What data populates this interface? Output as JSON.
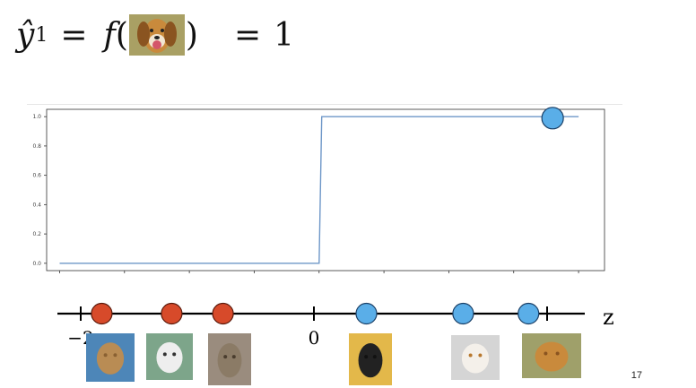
{
  "equation": {
    "lhs": "ŷ",
    "sub": "1",
    "eq1": "=",
    "func": "f",
    "open": "(",
    "close": ")",
    "eq2": "=",
    "result": "1",
    "image_icon": "dog-photo-icon"
  },
  "chart_data": {
    "type": "line",
    "x": [
      -2.0,
      0.0,
      0.02,
      2.0
    ],
    "y": [
      0.0,
      0.0,
      1.0,
      1.0
    ],
    "xlim": [
      -2.1,
      2.2
    ],
    "ylim": [
      -0.05,
      1.05
    ],
    "yticks": [
      "0.0",
      "0.2",
      "0.4",
      "0.6",
      "0.8",
      "1.0"
    ],
    "highlight_point": {
      "x": 1.8,
      "y": 0.99
    },
    "line_color": "#6e97c8"
  },
  "number_line": {
    "axis_label": "z",
    "tick_labels": [
      "−2",
      "0"
    ],
    "points": [
      {
        "x": -1.82,
        "class": "cat",
        "color": "#d74a2a",
        "image_icon": "cat-photo-icon"
      },
      {
        "x": -1.22,
        "class": "cat",
        "color": "#d74a2a",
        "image_icon": "cat-photo-icon"
      },
      {
        "x": -0.78,
        "class": "cat",
        "color": "#d74a2a",
        "image_icon": "cat-photo-icon"
      },
      {
        "x": 0.45,
        "class": "dog",
        "color": "#5aaee8",
        "image_icon": "pug-photo-icon"
      },
      {
        "x": 1.28,
        "class": "dog",
        "color": "#5aaee8",
        "image_icon": "dog-photo-icon"
      },
      {
        "x": 1.84,
        "class": "dog",
        "color": "#5aaee8",
        "image_icon": "dog-photo-icon"
      }
    ]
  },
  "page_number": "17"
}
